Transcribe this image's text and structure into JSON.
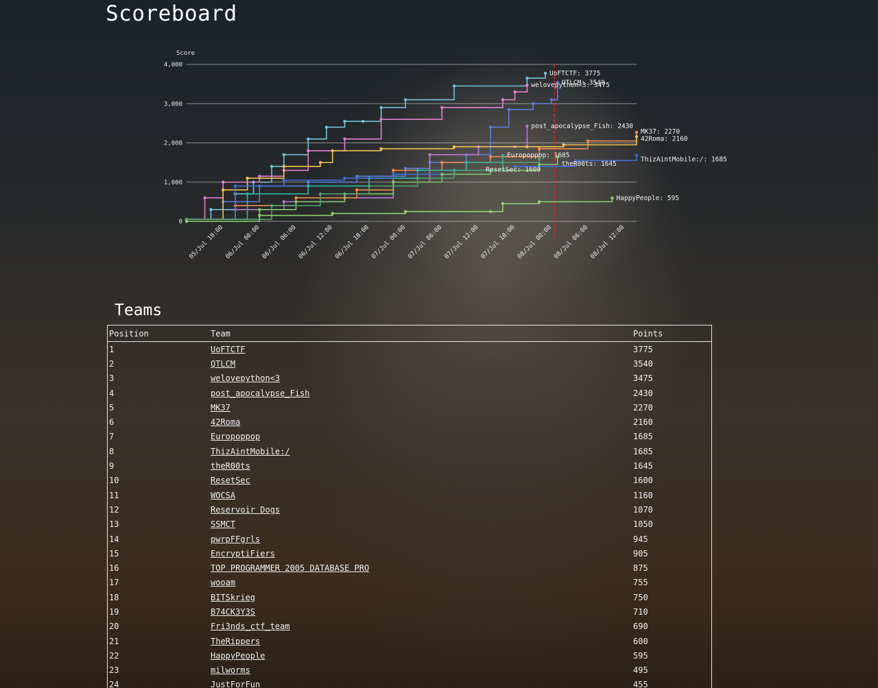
{
  "page": {
    "title": "Scoreboard",
    "teams_heading": "Teams"
  },
  "table": {
    "headers": {
      "position": "Position",
      "team": "Team",
      "points": "Points"
    },
    "rows": [
      {
        "position": "1",
        "team": "UoFTCTF",
        "points": "3775"
      },
      {
        "position": "2",
        "team": "QTLCM",
        "points": "3540"
      },
      {
        "position": "3",
        "team": "welovepython<3",
        "points": "3475"
      },
      {
        "position": "4",
        "team": "post_apocalypse_Fish",
        "points": "2430"
      },
      {
        "position": "5",
        "team": "MK37",
        "points": "2270"
      },
      {
        "position": "6",
        "team": "42Roma",
        "points": "2160"
      },
      {
        "position": "7",
        "team": "Europoppop",
        "points": "1685"
      },
      {
        "position": "8",
        "team": "ThizAintMobile:/",
        "points": "1685"
      },
      {
        "position": "9",
        "team": "theR00ts",
        "points": "1645"
      },
      {
        "position": "10",
        "team": "ResetSec",
        "points": "1600"
      },
      {
        "position": "11",
        "team": "WOCSA",
        "points": "1160"
      },
      {
        "position": "12",
        "team": "Reservoir Dogs",
        "points": "1070"
      },
      {
        "position": "13",
        "team": "SSMCT",
        "points": "1050"
      },
      {
        "position": "14",
        "team": "pwrpFFgrls",
        "points": "945"
      },
      {
        "position": "15",
        "team": "EncryptiFiers",
        "points": "905"
      },
      {
        "position": "16",
        "team": "TOP PROGRAMMER 2005 DATABASE PRO",
        "points": "875"
      },
      {
        "position": "17",
        "team": "wooam",
        "points": "755"
      },
      {
        "position": "18",
        "team": "BITSkrieg",
        "points": "750"
      },
      {
        "position": "19",
        "team": "B74CK3Y3S",
        "points": "710"
      },
      {
        "position": "20",
        "team": "Fri3nds_ctf_team",
        "points": "690"
      },
      {
        "position": "21",
        "team": "TheRippers",
        "points": "600"
      },
      {
        "position": "22",
        "team": "HappyPeople",
        "points": "595"
      },
      {
        "position": "23",
        "team": "milworms",
        "points": "495"
      },
      {
        "position": "24",
        "team": "JustForFun",
        "points": "455"
      }
    ]
  },
  "chart_data": {
    "type": "line",
    "title": "",
    "ylabel": "Score",
    "xlabel": "",
    "ylim": [
      0,
      4000
    ],
    "xlim": [
      "05/Jul 12:00",
      "08/Jul 14:00"
    ],
    "yticks": [
      "0",
      "1,000",
      "2,000",
      "3,000",
      "4,000"
    ],
    "xticks": [
      "05/Jul 18:00",
      "06/Jul 00:00",
      "06/Jul 06:00",
      "06/Jul 12:00",
      "06/Jul 18:00",
      "07/Jul 00:00",
      "07/Jul 06:00",
      "07/Jul 12:00",
      "07/Jul 18:00",
      "08/Jul 00:00",
      "08/Jul 06:00",
      "08/Jul 12:00"
    ],
    "grid": true,
    "marker_line": "08/Jul 00:30",
    "marker_color": "#e0262c",
    "series": [
      {
        "name": "UoFTCTF",
        "end_label": "UoFTCTF: 3775",
        "color": "#72c3de",
        "x": [
          "05/Jul 12:00",
          "05/Jul 16:00",
          "05/Jul 20:00",
          "05/Jul 23:00",
          "06/Jul 02:00",
          "06/Jul 04:00",
          "06/Jul 08:00",
          "06/Jul 11:00",
          "06/Jul 14:00",
          "06/Jul 17:00",
          "06/Jul 20:00",
          "07/Jul 00:00",
          "07/Jul 08:00",
          "07/Jul 20:00",
          "07/Jul 23:00"
        ],
        "y": [
          50,
          300,
          700,
          1000,
          1400,
          1700,
          2100,
          2400,
          2550,
          2550,
          2900,
          3100,
          3450,
          3650,
          3775
        ]
      },
      {
        "name": "QTLCM",
        "end_label": "QTLCM: 3540",
        "color": "#5a7fdc",
        "x": [
          "05/Jul 12:00",
          "05/Jul 18:00",
          "06/Jul 00:00",
          "06/Jul 08:00",
          "06/Jul 16:00",
          "07/Jul 00:00",
          "07/Jul 04:00",
          "07/Jul 10:00",
          "07/Jul 14:00",
          "07/Jul 17:00",
          "07/Jul 21:00",
          "08/Jul 00:00",
          "08/Jul 01:00"
        ],
        "y": [
          50,
          500,
          900,
          1000,
          1150,
          1350,
          1500,
          1700,
          2400,
          2850,
          3000,
          3100,
          3540
        ]
      },
      {
        "name": "welovepython<3",
        "end_label": "welovepython<3: 3475",
        "color": "#e77ed0",
        "x": [
          "05/Jul 12:00",
          "05/Jul 15:00",
          "05/Jul 18:00",
          "06/Jul 00:00",
          "06/Jul 04:00",
          "06/Jul 08:00",
          "06/Jul 14:00",
          "06/Jul 20:00",
          "07/Jul 06:00",
          "07/Jul 16:00",
          "07/Jul 18:00",
          "07/Jul 20:00"
        ],
        "y": [
          50,
          600,
          1000,
          1150,
          1300,
          1800,
          2100,
          2600,
          2900,
          3100,
          3300,
          3475
        ]
      },
      {
        "name": "post_apocalypse_Fish",
        "end_label": "post_apocalypse_Fish: 2430",
        "color": "#b97ad9",
        "x": [
          "05/Jul 12:00",
          "05/Jul 20:00",
          "06/Jul 04:00",
          "06/Jul 14:00",
          "06/Jul 22:00",
          "07/Jul 04:00",
          "07/Jul 12:00",
          "07/Jul 18:00",
          "07/Jul 20:00"
        ],
        "y": [
          50,
          300,
          500,
          600,
          1000,
          1700,
          1900,
          1900,
          2430
        ]
      },
      {
        "name": "MK37",
        "end_label": "MK37: 2270",
        "color": "#f28a4c",
        "x": [
          "05/Jul 12:00",
          "05/Jul 20:00",
          "06/Jul 06:00",
          "06/Jul 16:00",
          "06/Jul 22:00",
          "07/Jul 06:00",
          "07/Jul 14:00",
          "07/Jul 22:00",
          "08/Jul 06:00",
          "08/Jul 14:00"
        ],
        "y": [
          50,
          400,
          600,
          800,
          1300,
          1500,
          1650,
          1850,
          2050,
          2270
        ]
      },
      {
        "name": "42Roma",
        "end_label": "42Roma: 2160",
        "color": "#f2c14e",
        "x": [
          "05/Jul 12:00",
          "05/Jul 18:00",
          "05/Jul 22:00",
          "06/Jul 04:00",
          "06/Jul 10:00",
          "06/Jul 12:00",
          "06/Jul 20:00",
          "07/Jul 08:00",
          "07/Jul 20:00",
          "08/Jul 02:00",
          "08/Jul 14:00"
        ],
        "y": [
          50,
          800,
          1100,
          1400,
          1500,
          1800,
          1850,
          1900,
          1900,
          1950,
          2160
        ]
      },
      {
        "name": "Europoppop",
        "end_label": "Europoppop: 1685",
        "color": "#2cb8a4",
        "x": [
          "05/Jul 12:00",
          "05/Jul 22:00",
          "06/Jul 08:00",
          "06/Jul 18:00",
          "07/Jul 02:00",
          "07/Jul 10:00",
          "07/Jul 16:00"
        ],
        "y": [
          50,
          700,
          900,
          1100,
          1300,
          1500,
          1685
        ]
      },
      {
        "name": "ThizAintMobile:/",
        "end_label": "ThizAintMobile:/: 1685",
        "color": "#3e6fd6",
        "x": [
          "05/Jul 12:00",
          "05/Jul 20:00",
          "06/Jul 04:00",
          "06/Jul 14:00",
          "06/Jul 22:00",
          "07/Jul 08:00",
          "07/Jul 18:00",
          "08/Jul 04:00",
          "08/Jul 14:00"
        ],
        "y": [
          50,
          900,
          1050,
          1100,
          1200,
          1300,
          1400,
          1550,
          1685
        ]
      },
      {
        "name": "theR00ts",
        "end_label": "theR00ts: 1645",
        "color": "#7dc96a",
        "x": [
          "05/Jul 12:00",
          "06/Jul 00:00",
          "06/Jul 06:00",
          "06/Jul 14:00",
          "06/Jul 22:00",
          "07/Jul 06:00",
          "07/Jul 14:00",
          "07/Jul 22:00",
          "08/Jul 01:00"
        ],
        "y": [
          50,
          300,
          500,
          700,
          1000,
          1200,
          1300,
          1450,
          1645
        ]
      },
      {
        "name": "ResetSec",
        "end_label": "ResetSec: 1600",
        "color": "#4ea26f",
        "x": [
          "05/Jul 12:00",
          "06/Jul 02:00",
          "06/Jul 10:00",
          "06/Jul 18:00",
          "07/Jul 02:00",
          "07/Jul 08:00",
          "07/Jul 16:00",
          "07/Jul 22:00"
        ],
        "y": [
          50,
          400,
          700,
          900,
          1100,
          1300,
          1500,
          1600
        ]
      },
      {
        "name": "HappyPeople",
        "end_label": "HappyPeople: 595",
        "color": "#8fd46a",
        "x": [
          "05/Jul 12:00",
          "06/Jul 00:00",
          "06/Jul 12:00",
          "07/Jul 00:00",
          "07/Jul 14:00",
          "07/Jul 16:00",
          "07/Jul 22:00",
          "08/Jul 10:00"
        ],
        "y": [
          0,
          150,
          200,
          250,
          250,
          450,
          500,
          595
        ]
      }
    ]
  }
}
